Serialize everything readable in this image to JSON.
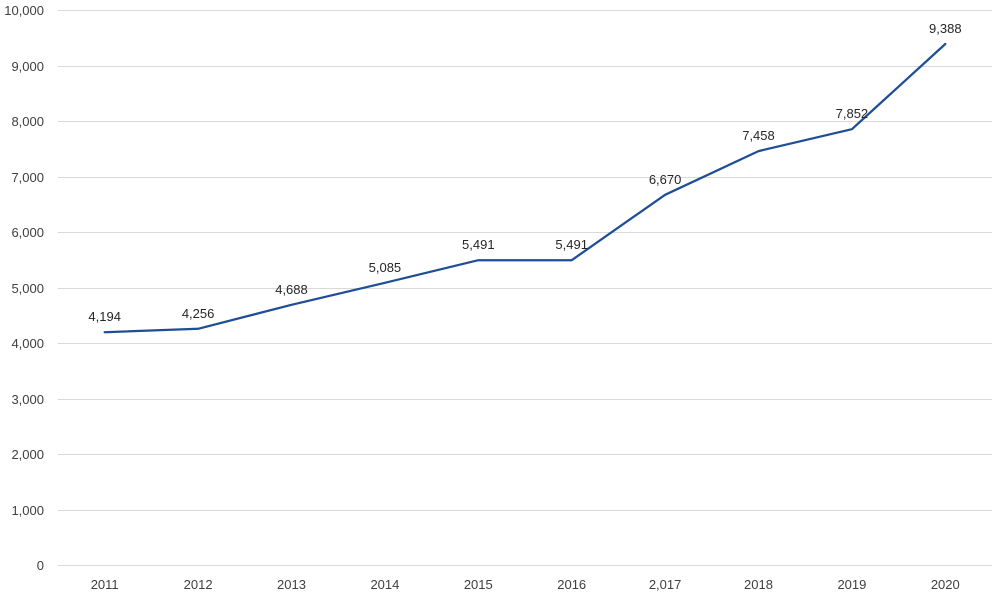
{
  "chart_data": {
    "type": "line",
    "title": "",
    "xlabel": "",
    "ylabel": "",
    "categories": [
      "2011",
      "2012",
      "2013",
      "2014",
      "2015",
      "2016",
      "2,017",
      "2018",
      "2019",
      "2020"
    ],
    "series": [
      {
        "values": [
          4194,
          4256,
          4688,
          5085,
          5491,
          5491,
          6670,
          7458,
          7852,
          9388
        ],
        "data_labels": [
          "4,194",
          "4,256",
          "4,688",
          "5,085",
          "5,491",
          "5,491",
          "6,670",
          "7,458",
          "7,852",
          "9,388"
        ],
        "color": "#1f4e96"
      }
    ],
    "ylim": [
      0,
      10000
    ],
    "yticks": [
      0,
      1000,
      2000,
      3000,
      4000,
      5000,
      6000,
      7000,
      8000,
      9000,
      10000
    ],
    "ytick_labels": [
      "0",
      "1,000",
      "2,000",
      "3,000",
      "4,000",
      "5,000",
      "6,000",
      "7,000",
      "8,000",
      "9,000",
      "10,000"
    ],
    "grid": true,
    "legend": "none"
  }
}
